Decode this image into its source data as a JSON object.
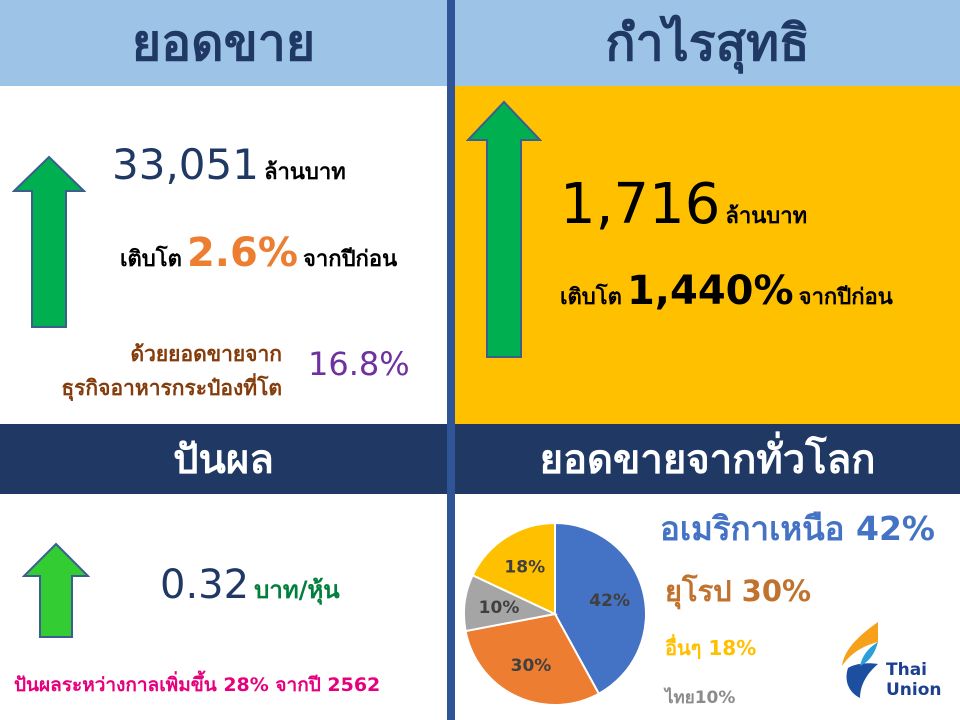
{
  "colors": {
    "header_light": "#9dc3e6",
    "header_dark": "#1f3864",
    "divider": "#2f5597",
    "gold_panel": "#ffc000",
    "arrow_green": "#00b050",
    "arrow_bright_green": "#33cc33",
    "orange": "#ed7d31",
    "purple": "#7030a0",
    "pink": "#e6007e",
    "navy": "#1f3864"
  },
  "sales": {
    "header": "ยอดขาย",
    "value": "33,051",
    "unit": "ล้านบาท",
    "growth_prefix": "เติบโต",
    "growth_value": "2.6%",
    "growth_suffix": "จากปีก่อน",
    "note_line1": "ด้วยยอดขายจาก",
    "note_line2": "ธุรกิจอาหารกระป๋องที่โต",
    "note_value": "16.8%",
    "arrow_icon": "up-arrow-icon"
  },
  "profit": {
    "header": "กำไรสุทธิ",
    "value": "1,716",
    "unit": "ล้านบาท",
    "growth_prefix": "เติบโต",
    "growth_value": "1,440%",
    "growth_suffix": "จากปีก่อน",
    "arrow_icon": "up-arrow-icon"
  },
  "dividend": {
    "header": "ปันผล",
    "value": "0.32",
    "unit": "บาท/หุ้น",
    "note": "ปันผลระหว่างกาลเพิ่มขึ้น 28% จากปี 2562",
    "arrow_icon": "up-arrow-icon"
  },
  "global": {
    "header": "ยอดขายจากทั่วโลก",
    "legend": [
      {
        "label": "อเมริกาเหนือ 42%",
        "color": "#4472c4"
      },
      {
        "label": "ยุโรป 30%",
        "color": "#c0722f"
      },
      {
        "label": "อื่นๆ 18%",
        "color": "#ffc000"
      },
      {
        "label": "ไทย10%",
        "color": "#8c8c8c"
      }
    ]
  },
  "chart_data": {
    "type": "pie",
    "categories": [
      "อเมริกาเหนือ",
      "ยุโรป",
      "ไทย",
      "อื่นๆ"
    ],
    "values": [
      42,
      30,
      10,
      18
    ],
    "data_labels": [
      "42%",
      "30%",
      "10%",
      "18%"
    ],
    "colors": [
      "#4472c4",
      "#ed7d31",
      "#a5a5a5",
      "#ffc000"
    ],
    "title": "",
    "legend_placement": "right"
  },
  "logo": {
    "line1": "Thai",
    "line2": "Union"
  }
}
